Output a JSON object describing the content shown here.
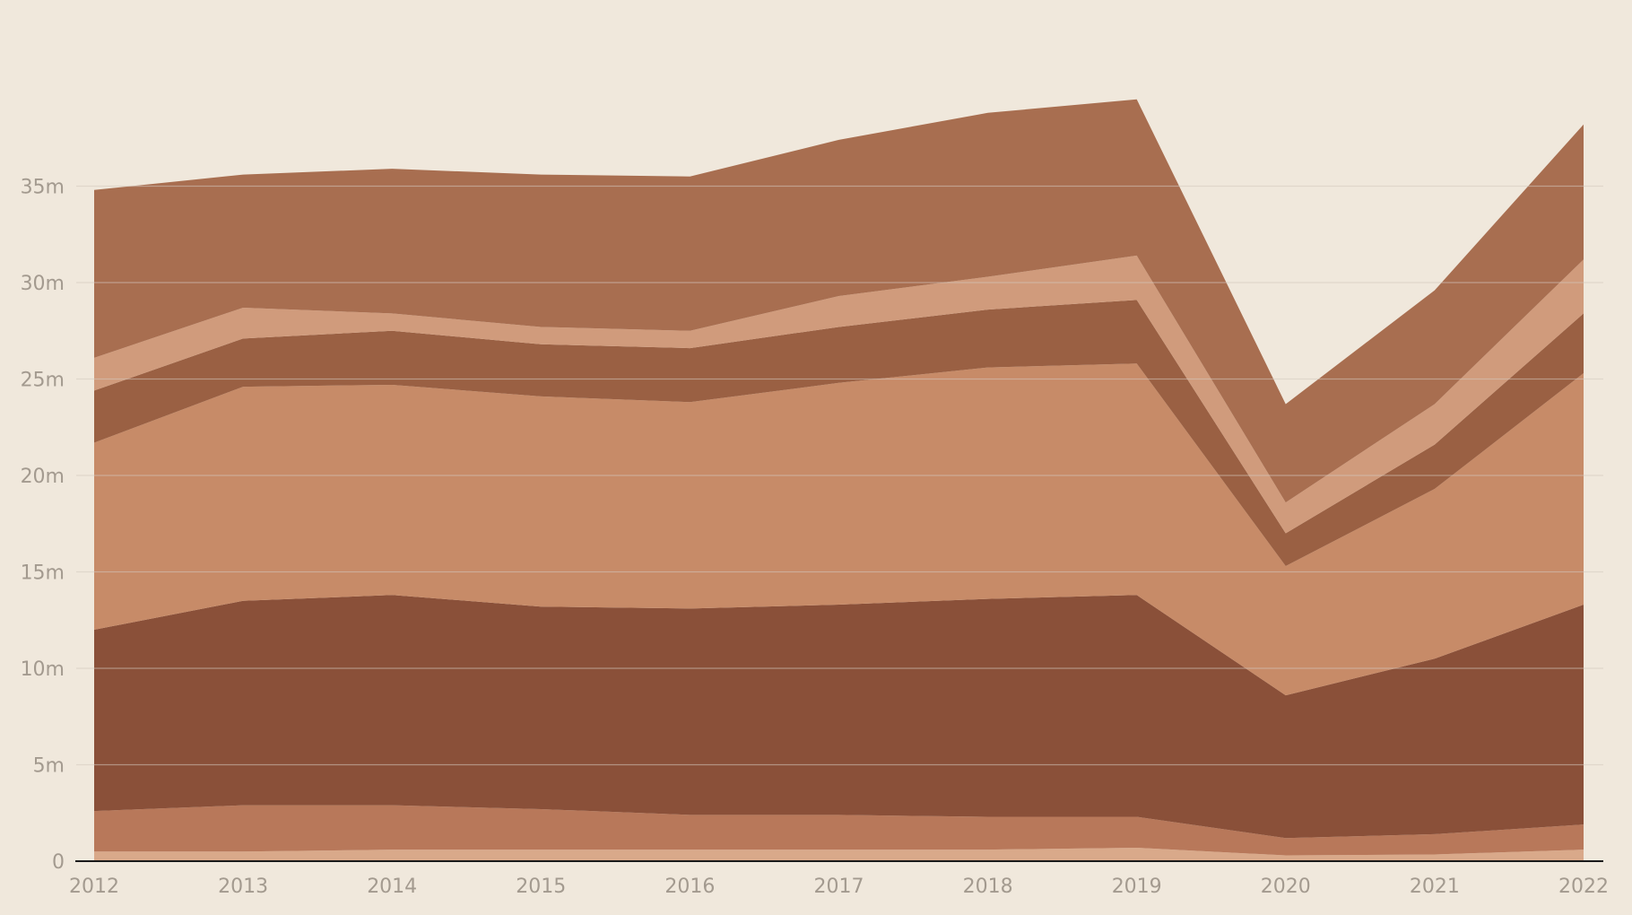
{
  "chart_data": {
    "type": "area",
    "stacked": true,
    "x": [
      "2012",
      "2013",
      "2014",
      "2015",
      "2016",
      "2017",
      "2018",
      "2019",
      "2020",
      "2021",
      "2022"
    ],
    "ylim": [
      0,
      40
    ],
    "yticks": [
      0,
      5,
      10,
      15,
      20,
      25,
      30,
      35
    ],
    "ytick_labels": [
      "0",
      "5m",
      "10m",
      "15m",
      "20m",
      "25m",
      "30m",
      "35m"
    ],
    "grid": true,
    "legend": "none",
    "series": [
      {
        "color": "#d9a98a",
        "values": [
          0.5,
          0.5,
          0.6,
          0.6,
          0.6,
          0.6,
          0.6,
          0.7,
          0.3,
          0.35,
          0.6
        ]
      },
      {
        "color": "#b8785a",
        "values": [
          2.1,
          2.4,
          2.3,
          2.1,
          1.8,
          1.8,
          1.7,
          1.6,
          0.9,
          1.05,
          1.3
        ]
      },
      {
        "color": "#8a5039",
        "values": [
          9.4,
          10.6,
          10.9,
          10.5,
          10.7,
          10.9,
          11.3,
          11.5,
          7.4,
          9.1,
          11.4
        ]
      },
      {
        "color": "#c78b68",
        "values": [
          9.7,
          11.1,
          10.9,
          10.9,
          10.7,
          11.5,
          12.0,
          12.0,
          6.7,
          8.8,
          12.0
        ]
      },
      {
        "color": "#9a6043",
        "values": [
          2.7,
          2.5,
          2.8,
          2.7,
          2.8,
          2.9,
          3.0,
          3.3,
          1.7,
          2.3,
          3.1
        ]
      },
      {
        "color": "#d09b7c",
        "values": [
          1.7,
          1.6,
          0.9,
          0.9,
          0.9,
          1.6,
          1.7,
          2.3,
          1.6,
          2.1,
          2.8
        ]
      },
      {
        "color": "#a86e50",
        "values": [
          8.7,
          6.9,
          7.5,
          7.9,
          8.0,
          8.1,
          8.5,
          8.1,
          5.1,
          5.9,
          7.0
        ]
      }
    ]
  }
}
